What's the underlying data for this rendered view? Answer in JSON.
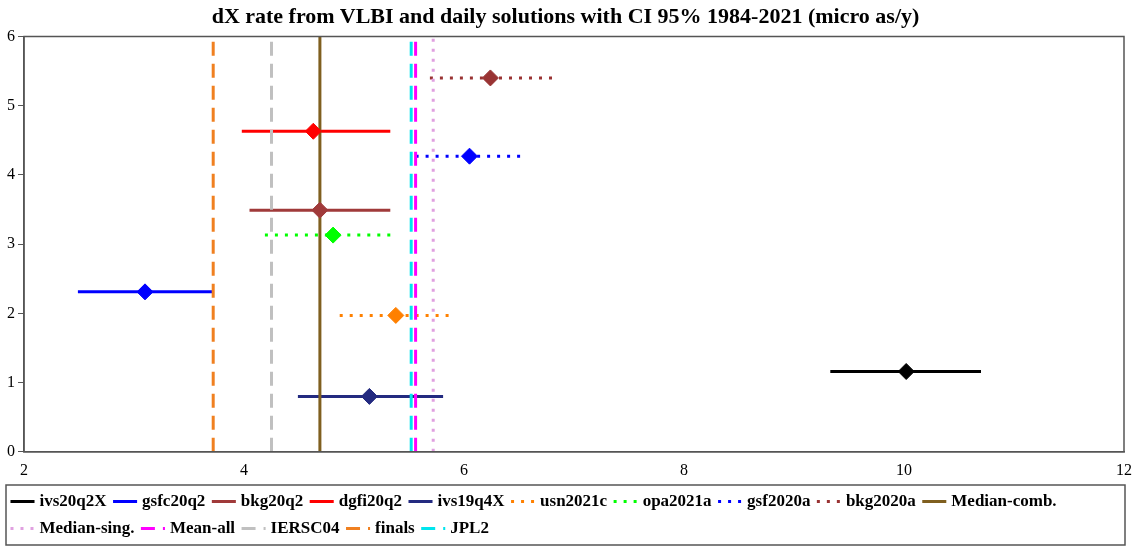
{
  "chart_data": {
    "type": "scatter",
    "title": "dX rate from VLBI and daily solutions with CI 95% 1984-2021 (micro as/y)",
    "xlim": [
      2,
      12
    ],
    "xticks": [
      2,
      4,
      6,
      8,
      10,
      12
    ],
    "ylim": [
      0,
      6
    ],
    "yticks": [
      0,
      1,
      2,
      3,
      4,
      5,
      6
    ],
    "grid": false,
    "legend": "bottom",
    "marker": "diamond",
    "series": [
      {
        "name": "ivs20q2X",
        "color": "#000000",
        "line_style": "solid",
        "x": [
          10.02
        ],
        "values": [
          1.16
        ],
        "xerrors": [
          [
            9.33,
            10.7
          ]
        ]
      },
      {
        "name": "gsfc20q2",
        "color": "#0000ff",
        "line_style": "solid",
        "x": [
          3.1
        ],
        "values": [
          2.31
        ],
        "xerrors": [
          [
            2.49,
            3.71
          ]
        ]
      },
      {
        "name": "bkg20q2",
        "color": "#a03a3a",
        "line_style": "solid",
        "x": [
          4.69
        ],
        "values": [
          3.49
        ],
        "xerrors": [
          [
            4.05,
            5.33
          ]
        ]
      },
      {
        "name": "dgfi20q2",
        "color": "#ff0000",
        "line_style": "solid",
        "x": [
          4.63
        ],
        "values": [
          4.63
        ],
        "xerrors": [
          [
            3.98,
            5.33
          ]
        ]
      },
      {
        "name": "ivs19q4X",
        "color": "#232a80",
        "line_style": "solid",
        "x": [
          5.14
        ],
        "values": [
          0.8
        ],
        "xerrors": [
          [
            4.49,
            5.81
          ]
        ]
      },
      {
        "name": "usn2021c",
        "color": "#ff8000",
        "line_style": "dotted",
        "x": [
          5.38
        ],
        "values": [
          1.97
        ],
        "xerrors": [
          [
            4.87,
            5.86
          ]
        ]
      },
      {
        "name": "opa2021a",
        "color": "#00ff00",
        "line_style": "dotted",
        "x": [
          4.81
        ],
        "values": [
          3.13
        ],
        "xerrors": [
          [
            4.19,
            5.33
          ]
        ]
      },
      {
        "name": "gsf2020a",
        "color": "#0000ff",
        "line_style": "dotted",
        "x": [
          6.05
        ],
        "values": [
          4.27
        ],
        "xerrors": [
          [
            5.56,
            6.51
          ]
        ]
      },
      {
        "name": "bkg2020a",
        "color": "#993333",
        "line_style": "dotted",
        "x": [
          6.24
        ],
        "values": [
          5.4
        ],
        "xerrors": [
          [
            5.69,
            6.8
          ]
        ]
      },
      {
        "name": "Median-comb.",
        "type": "line",
        "color": "#7f5f1f",
        "line_style": "solid",
        "marker": "none",
        "x": [
          4.69,
          4.69
        ],
        "values": [
          0,
          6
        ]
      },
      {
        "name": "Median-sing.",
        "type": "line",
        "color": "#e0a0e0",
        "line_style": "dotted",
        "marker": "none",
        "x": [
          5.72,
          5.72
        ],
        "values": [
          0,
          6
        ]
      },
      {
        "name": "Mean-all",
        "type": "line",
        "color": "#ff00ff",
        "line_style": "dashed",
        "marker": "none",
        "x": [
          5.56,
          5.56
        ],
        "values": [
          0,
          6
        ]
      },
      {
        "name": "IERSC04",
        "type": "line",
        "color": "#c0c0c0",
        "line_style": "dashed",
        "marker": "none",
        "x": [
          4.25,
          4.25
        ],
        "values": [
          0,
          6
        ]
      },
      {
        "name": "finals",
        "type": "line",
        "color": "#f08020",
        "line_style": "dashed",
        "marker": "none",
        "x": [
          3.72,
          3.72
        ],
        "values": [
          0,
          6
        ]
      },
      {
        "name": "JPL2",
        "type": "line",
        "color": "#00e5ee",
        "line_style": "dashed",
        "marker": "none",
        "x": [
          5.52,
          5.52
        ],
        "values": [
          0,
          6
        ]
      }
    ]
  }
}
